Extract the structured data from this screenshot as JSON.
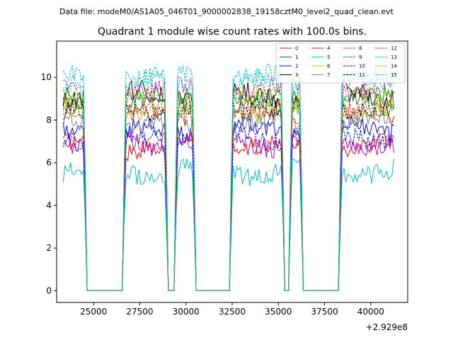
{
  "chart_data": {
    "type": "line",
    "suptitle": "Data file: modeM0/AS1A05_046T01_9000002838_19158cztM0_level2_quad_clean.evt",
    "title": "Quadrant 1 module wise count rates with 100.0s bins.",
    "xlabel": "",
    "ylabel": "",
    "x_offset_label": "+2.929e8",
    "xlim": [
      23000,
      42000
    ],
    "ylim": [
      -0.55,
      11.7
    ],
    "x_ticks": [
      25000,
      27500,
      30000,
      32500,
      35000,
      37500,
      40000
    ],
    "x_tick_labels": [
      "25000",
      "27500",
      "30000",
      "32500",
      "35000",
      "37500",
      "40000"
    ],
    "y_ticks": [
      0,
      2,
      4,
      6,
      8,
      10
    ],
    "y_tick_labels": [
      "0",
      "2",
      "4",
      "6",
      "8",
      "10"
    ],
    "grid": false,
    "legend_position": "top-right",
    "bin_size_s": 100,
    "x_start": 23350,
    "x_end": 41250,
    "gaps": [
      [
        24550,
        26650
      ],
      [
        28950,
        29450
      ],
      [
        30450,
        32450
      ],
      [
        35250,
        35650
      ],
      [
        36250,
        38350
      ]
    ],
    "series": [
      {
        "name": "0",
        "color": "#ff0000",
        "dashed": false,
        "level": 6.8
      },
      {
        "name": "1",
        "color": "#008000",
        "dashed": false,
        "level": 9.0
      },
      {
        "name": "2",
        "color": "#0000ff",
        "dashed": false,
        "level": 7.5
      },
      {
        "name": "3",
        "color": "#000000",
        "dashed": false,
        "level": 9.2
      },
      {
        "name": "4",
        "color": "#bf00bf",
        "dashed": false,
        "level": 6.9
      },
      {
        "name": "5",
        "color": "#00bfbf",
        "dashed": false,
        "level": 5.6
      },
      {
        "name": "6",
        "color": "#bfbf00",
        "dashed": false,
        "level": 8.4
      },
      {
        "name": "7",
        "color": "#808080",
        "dashed": false,
        "level": 7.8
      },
      {
        "name": "8",
        "color": "#ff0000",
        "dashed": true,
        "level": 8.3
      },
      {
        "name": "9",
        "color": "#008000",
        "dashed": true,
        "level": 8.8
      },
      {
        "name": "10",
        "color": "#0000ff",
        "dashed": true,
        "level": 7.2
      },
      {
        "name": "11",
        "color": "#000000",
        "dashed": true,
        "level": 8.6
      },
      {
        "name": "12",
        "color": "#bf00bf",
        "dashed": true,
        "level": 9.5
      },
      {
        "name": "13",
        "color": "#00bfbf",
        "dashed": true,
        "level": 10.0
      },
      {
        "name": "14",
        "color": "#bfbf00",
        "dashed": true,
        "level": 9.0
      },
      {
        "name": "15",
        "color": "#00bfbf",
        "dashed": true,
        "level": 9.8
      }
    ]
  }
}
